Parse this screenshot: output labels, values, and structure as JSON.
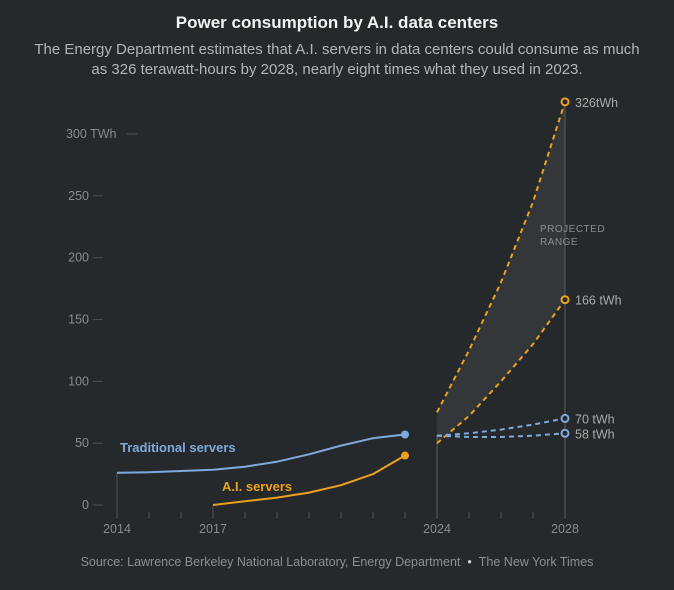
{
  "header": {
    "title": "Power consumption by A.I. data centers",
    "subtitle": "The Energy Department estimates that A.I. servers in data centers could consume as much as 326 terawatt-hours by 2028, nearly eight times what they used in 2023."
  },
  "footer": {
    "source": "Source: Lawrence Berkeley National Laboratory, Energy Department",
    "credit": "The New York Times"
  },
  "colors": {
    "background": "#26292c",
    "traditional": "#7ea9dd",
    "ai": "#eba11e",
    "axis_text": "#8a8a8a",
    "grid": "#4c4f53",
    "range_fill": "#34373a"
  },
  "chart_data": {
    "type": "line",
    "x_ticks": [
      "2014",
      "2017",
      "2024",
      "2028"
    ],
    "x_range": [
      2014,
      2028
    ],
    "y_ticks": [
      0,
      50,
      100,
      150,
      200,
      250,
      300
    ],
    "y_tick_labels": [
      "0",
      "50",
      "100",
      "150",
      "200",
      "250",
      "300 TWh"
    ],
    "ylim": [
      0,
      300
    ],
    "series": [
      {
        "name": "Traditional servers",
        "color": "#7ea9dd",
        "x": [
          2014,
          2015,
          2016,
          2017,
          2018,
          2019,
          2020,
          2021,
          2022,
          2023
        ],
        "values": [
          26,
          26.5,
          27.5,
          28.5,
          31,
          35,
          41,
          48,
          54,
          57
        ]
      },
      {
        "name": "A.I. servers",
        "color": "#eba11e",
        "x": [
          2017,
          2018,
          2019,
          2020,
          2021,
          2022,
          2023
        ],
        "values": [
          0,
          3,
          6,
          10,
          16,
          25,
          40
        ]
      }
    ],
    "projections": [
      {
        "series": "A.I. servers",
        "label": "326tWh",
        "x": [
          2024,
          2025,
          2026,
          2027,
          2028
        ],
        "values": [
          75,
          125,
          180,
          245,
          326
        ]
      },
      {
        "series": "A.I. servers",
        "label": "166 tWh",
        "x": [
          2024,
          2025,
          2026,
          2027,
          2028
        ],
        "values": [
          50,
          72,
          100,
          130,
          166
        ]
      },
      {
        "series": "Traditional servers",
        "label": "70 tWh",
        "x": [
          2024,
          2025,
          2026,
          2027,
          2028
        ],
        "values": [
          56,
          58,
          61,
          65,
          70
        ]
      },
      {
        "series": "Traditional servers",
        "label": "58 tWh",
        "x": [
          2024,
          2025,
          2026,
          2027,
          2028
        ],
        "values": [
          56,
          55,
          55,
          56,
          58
        ]
      }
    ],
    "annotations": {
      "projected_range": [
        "PROJECTED",
        "RANGE"
      ]
    },
    "grid": false
  }
}
